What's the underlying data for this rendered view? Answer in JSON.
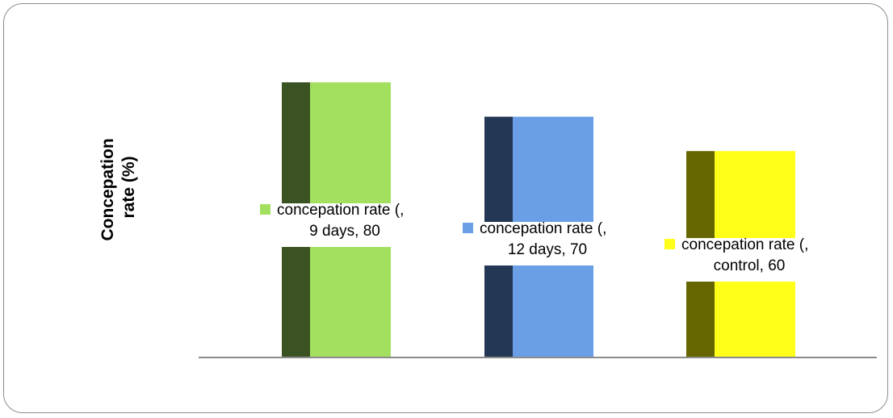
{
  "chart_data": {
    "type": "bar",
    "ylabel_lines": [
      "Concepation",
      "rate (%)"
    ],
    "ylim": [
      0,
      100
    ],
    "grid": false,
    "categories": [
      "9 days",
      "12 days",
      "control"
    ],
    "values": [
      80,
      70,
      60
    ],
    "data_labels": [
      [
        "concepation rate (,",
        "9 days, 80"
      ],
      [
        "concepation rate (,",
        "12 days, 70"
      ],
      [
        "concepation rate (,",
        "control, 60"
      ]
    ],
    "colors": {
      "front": [
        "#a3e060",
        "#6a9fe6",
        "#ffff19"
      ],
      "side": [
        "#3b5323",
        "#243754",
        "#666600"
      ],
      "axis": "#8c8c8c"
    }
  }
}
